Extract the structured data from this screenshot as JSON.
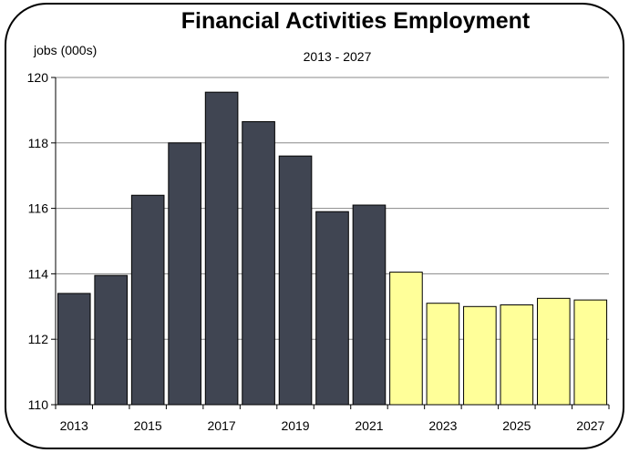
{
  "chart_data": {
    "type": "bar",
    "title": "Financial Activities Employment",
    "subtitle": "2013 - 2027",
    "ylabel": "jobs (000s)",
    "ylim": [
      110,
      120
    ],
    "yticks": [
      110,
      112,
      114,
      116,
      118,
      120
    ],
    "grid": true,
    "categories": [
      "2013",
      "2014",
      "2015",
      "2016",
      "2017",
      "2018",
      "2019",
      "2020",
      "2021",
      "2022",
      "2023",
      "2024",
      "2025",
      "2026",
      "2027"
    ],
    "x_tick_labels": [
      "2013",
      "2015",
      "2017",
      "2019",
      "2021",
      "2023",
      "2025",
      "2027"
    ],
    "values": [
      113.4,
      113.95,
      116.4,
      118.0,
      119.55,
      118.65,
      117.6,
      115.9,
      116.1,
      114.05,
      113.1,
      113.0,
      113.05,
      113.25,
      113.2
    ],
    "bar_colors": {
      "historical": "#404552",
      "projected": "#ffff99"
    },
    "projection_start_index": 9
  }
}
